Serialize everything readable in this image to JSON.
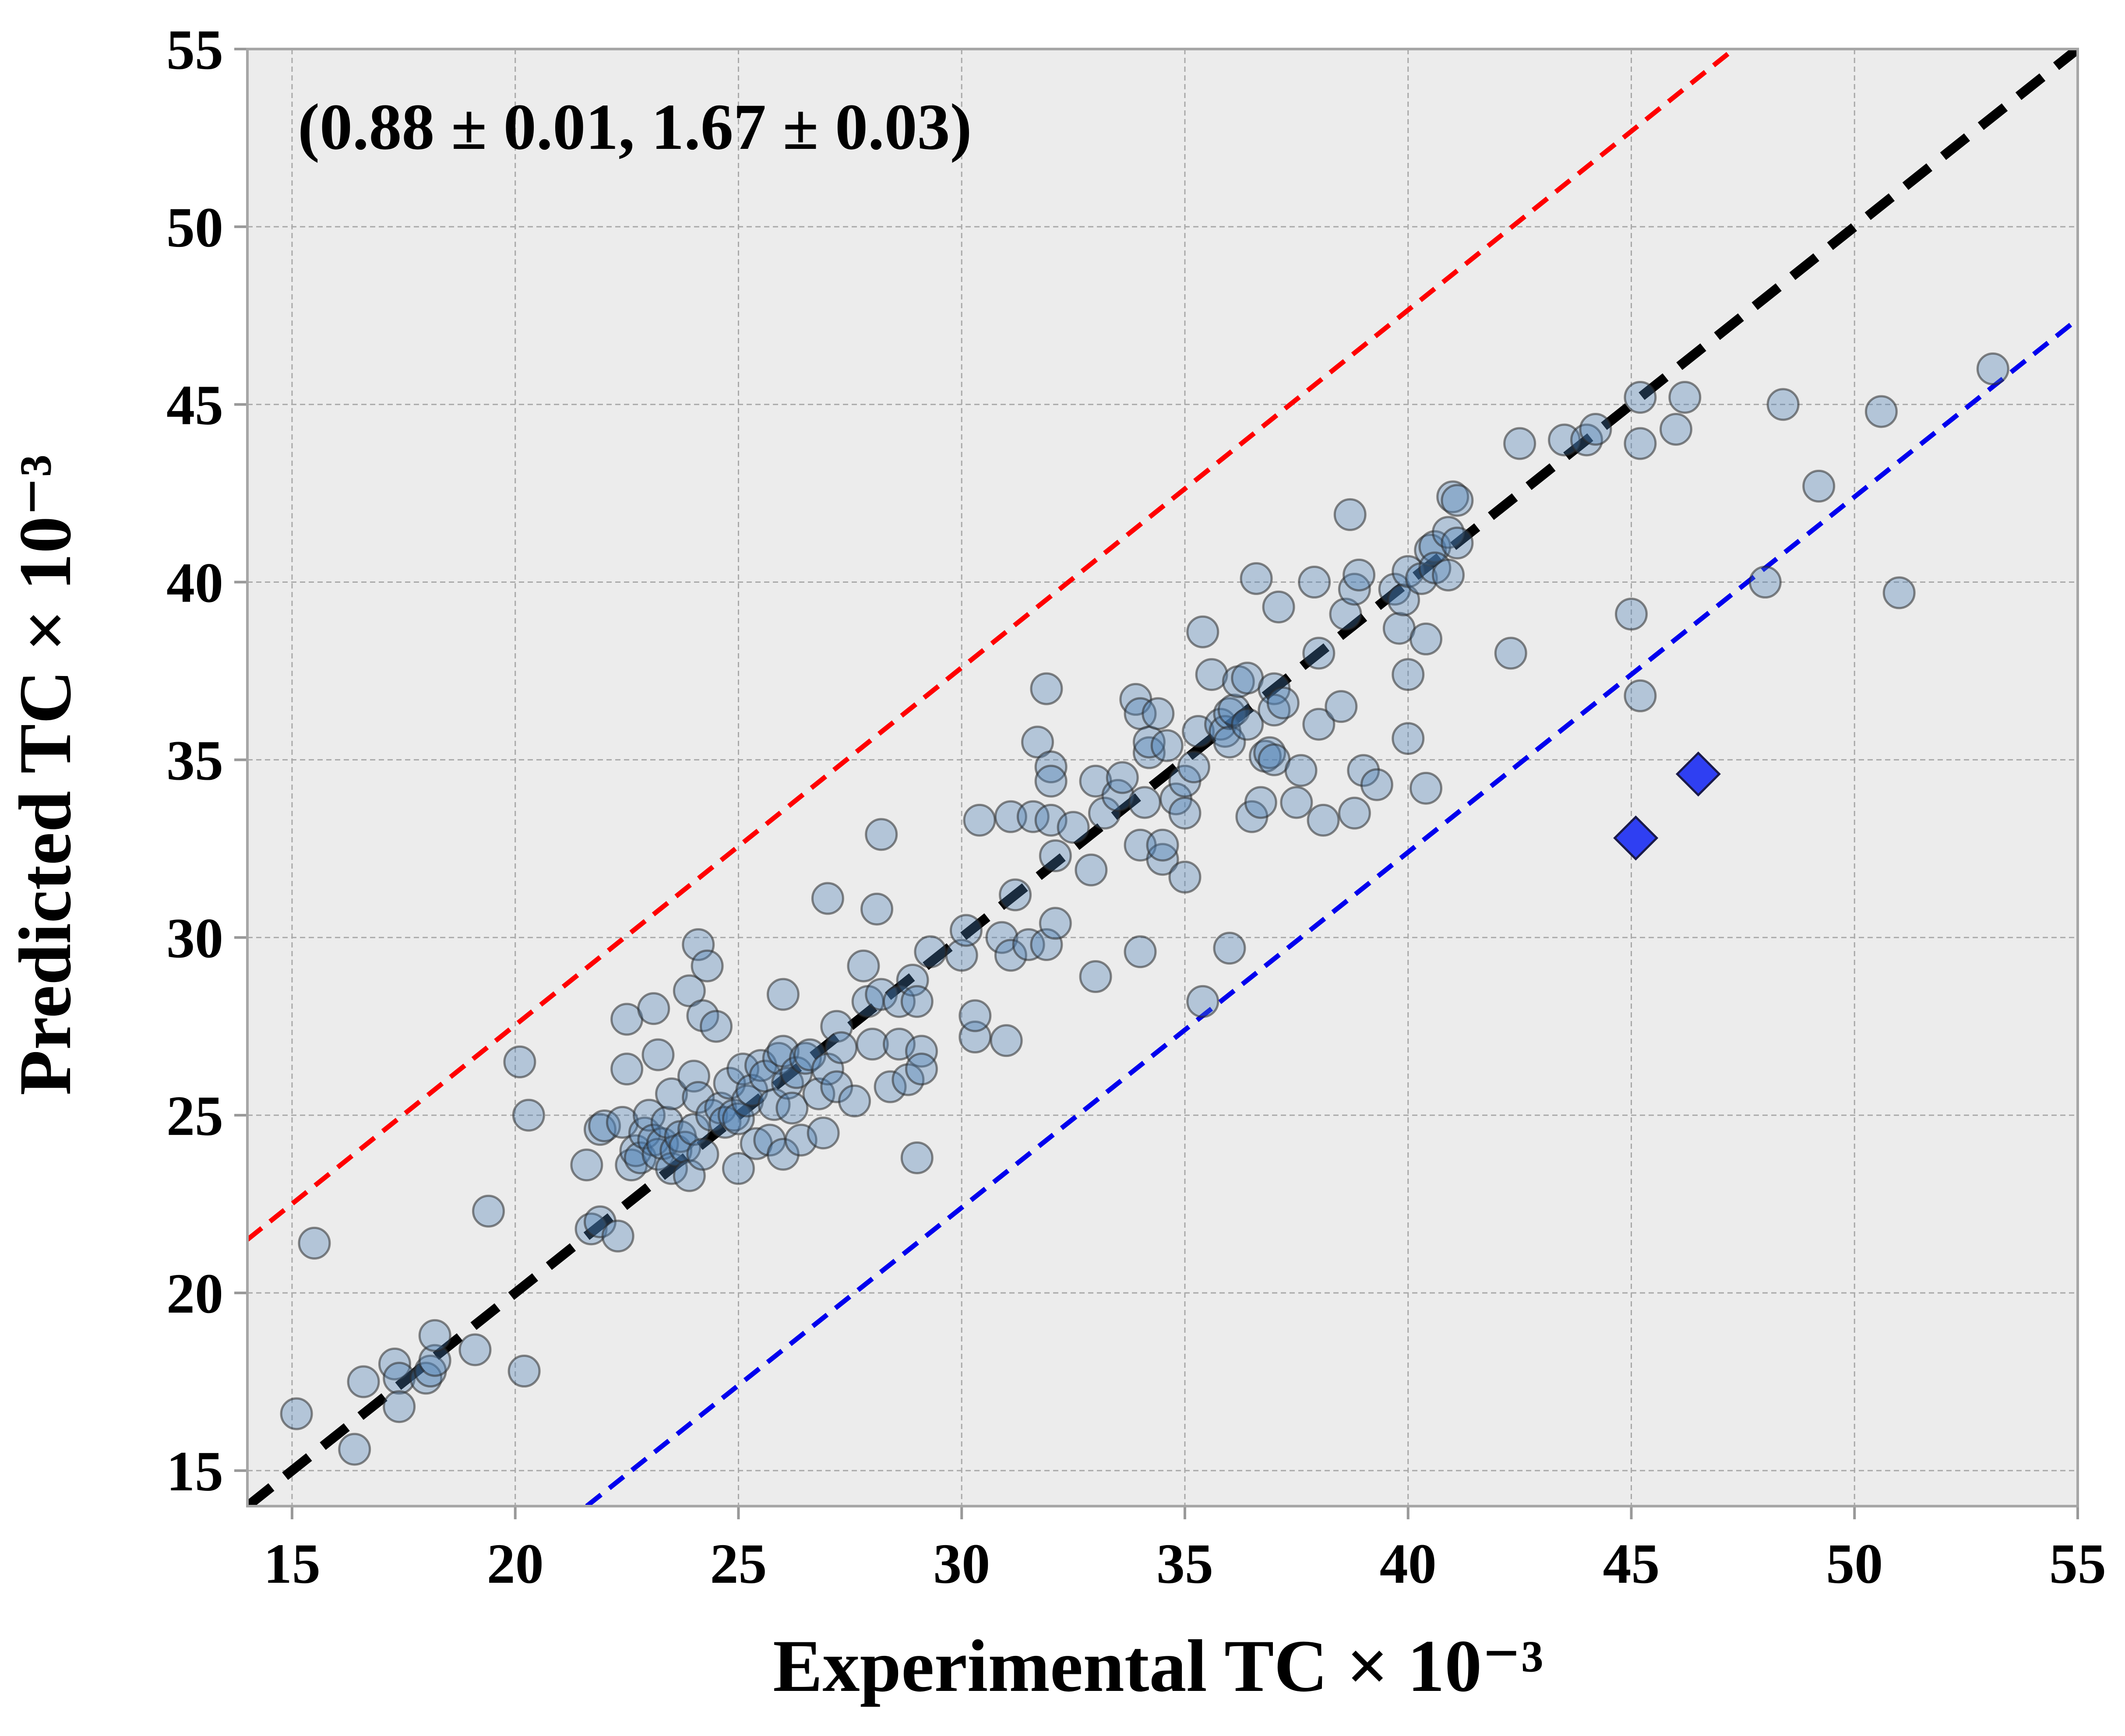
{
  "chart_data": {
    "type": "scatter",
    "title": "",
    "annotation": "(0.88 ± 0.01, 1.67 ± 0.03)",
    "xlabel": "Experimental TC × 10⁻³",
    "ylabel": "Predicted TC × 10⁻³",
    "xlim": [
      14,
      55
    ],
    "ylim": [
      14,
      55
    ],
    "xticks": [
      "15",
      "20",
      "25",
      "30",
      "35",
      "40",
      "45",
      "50",
      "55"
    ],
    "yticks": [
      "15",
      "20",
      "25",
      "30",
      "35",
      "40",
      "45",
      "50",
      "55"
    ],
    "grid": true,
    "background": "#ececec",
    "reference_lines": [
      {
        "style": "dashed",
        "color": "#000000",
        "points": [
          [
            14,
            14
          ],
          [
            55,
            55
          ]
        ]
      },
      {
        "style": "dashed",
        "color": "#ff0000",
        "points": [
          [
            14,
            21.5
          ],
          [
            47.3,
            55
          ]
        ]
      },
      {
        "style": "dashed",
        "color": "#0000ee",
        "points": [
          [
            21.6,
            14
          ],
          [
            55,
            47.4
          ]
        ]
      }
    ],
    "series": [
      {
        "marker": "circle",
        "color": "#4a7db5",
        "points": [
          [
            15.1,
            16.6
          ],
          [
            15.5,
            21.4
          ],
          [
            16.4,
            15.6
          ],
          [
            16.6,
            17.5
          ],
          [
            17.3,
            18.0
          ],
          [
            17.4,
            17.6
          ],
          [
            17.4,
            16.8
          ],
          [
            18.0,
            17.6
          ],
          [
            18.1,
            17.8
          ],
          [
            18.2,
            18.1
          ],
          [
            18.2,
            18.8
          ],
          [
            19.1,
            18.4
          ],
          [
            19.4,
            22.3
          ],
          [
            20.1,
            26.5
          ],
          [
            20.2,
            17.8
          ],
          [
            20.3,
            25.0
          ],
          [
            21.6,
            23.6
          ],
          [
            21.7,
            21.8
          ],
          [
            21.9,
            22.0
          ],
          [
            21.9,
            24.6
          ],
          [
            22.0,
            24.7
          ],
          [
            22.3,
            21.6
          ],
          [
            22.4,
            24.8
          ],
          [
            22.5,
            27.7
          ],
          [
            22.5,
            26.3
          ],
          [
            22.6,
            23.6
          ],
          [
            22.7,
            24.0
          ],
          [
            22.8,
            23.8
          ],
          [
            22.9,
            24.5
          ],
          [
            23.0,
            25.0
          ],
          [
            23.1,
            24.3
          ],
          [
            23.1,
            28.0
          ],
          [
            23.2,
            23.9
          ],
          [
            23.2,
            26.7
          ],
          [
            23.3,
            24.2
          ],
          [
            23.4,
            24.8
          ],
          [
            23.5,
            25.6
          ],
          [
            23.5,
            23.5
          ],
          [
            23.6,
            24.0
          ],
          [
            23.7,
            24.4
          ],
          [
            23.8,
            24.1
          ],
          [
            23.9,
            28.5
          ],
          [
            23.9,
            23.3
          ],
          [
            24.0,
            26.1
          ],
          [
            24.0,
            24.6
          ],
          [
            24.1,
            29.8
          ],
          [
            24.1,
            25.5
          ],
          [
            24.2,
            27.8
          ],
          [
            24.2,
            23.9
          ],
          [
            24.3,
            29.2
          ],
          [
            24.4,
            25.0
          ],
          [
            24.5,
            27.5
          ],
          [
            24.6,
            25.2
          ],
          [
            24.7,
            24.8
          ],
          [
            24.8,
            25.9
          ],
          [
            24.9,
            25.0
          ],
          [
            25.0,
            23.5
          ],
          [
            25.0,
            24.9
          ],
          [
            25.1,
            26.3
          ],
          [
            25.2,
            25.4
          ],
          [
            25.3,
            25.7
          ],
          [
            25.4,
            24.2
          ],
          [
            25.5,
            26.4
          ],
          [
            25.6,
            26.1
          ],
          [
            25.7,
            24.3
          ],
          [
            25.8,
            25.3
          ],
          [
            25.9,
            26.6
          ],
          [
            26.0,
            28.4
          ],
          [
            26.0,
            26.8
          ],
          [
            26.0,
            23.9
          ],
          [
            26.1,
            25.9
          ],
          [
            26.2,
            25.2
          ],
          [
            26.3,
            26.2
          ],
          [
            26.4,
            24.3
          ],
          [
            26.5,
            26.6
          ],
          [
            26.6,
            26.7
          ],
          [
            26.8,
            25.6
          ],
          [
            26.9,
            24.5
          ],
          [
            27.0,
            31.1
          ],
          [
            27.0,
            26.3
          ],
          [
            27.2,
            27.5
          ],
          [
            27.2,
            25.8
          ],
          [
            27.3,
            26.9
          ],
          [
            27.6,
            25.4
          ],
          [
            27.8,
            29.2
          ],
          [
            27.9,
            28.2
          ],
          [
            28.0,
            27.0
          ],
          [
            28.1,
            30.8
          ],
          [
            28.2,
            32.9
          ],
          [
            28.2,
            28.4
          ],
          [
            28.4,
            25.8
          ],
          [
            28.6,
            28.2
          ],
          [
            28.6,
            27.0
          ],
          [
            28.8,
            26.0
          ],
          [
            28.9,
            28.8
          ],
          [
            29.0,
            28.2
          ],
          [
            29.0,
            23.8
          ],
          [
            29.1,
            26.8
          ],
          [
            29.1,
            26.3
          ],
          [
            29.3,
            29.6
          ],
          [
            30.0,
            29.5
          ],
          [
            30.1,
            30.2
          ],
          [
            30.3,
            27.2
          ],
          [
            30.3,
            27.8
          ],
          [
            30.4,
            33.3
          ],
          [
            30.9,
            30.0
          ],
          [
            31.0,
            27.1
          ],
          [
            31.1,
            29.5
          ],
          [
            31.1,
            33.4
          ],
          [
            31.2,
            31.2
          ],
          [
            31.5,
            29.8
          ],
          [
            31.6,
            33.4
          ],
          [
            31.7,
            35.5
          ],
          [
            31.9,
            37.0
          ],
          [
            31.9,
            29.8
          ],
          [
            32.0,
            34.8
          ],
          [
            32.0,
            34.4
          ],
          [
            32.0,
            33.3
          ],
          [
            32.1,
            32.3
          ],
          [
            32.1,
            30.4
          ],
          [
            32.5,
            33.1
          ],
          [
            32.9,
            31.9
          ],
          [
            33.0,
            34.4
          ],
          [
            33.0,
            28.9
          ],
          [
            33.2,
            33.5
          ],
          [
            33.5,
            34.0
          ],
          [
            33.6,
            34.5
          ],
          [
            33.9,
            36.7
          ],
          [
            34.0,
            36.3
          ],
          [
            34.0,
            32.6
          ],
          [
            34.0,
            29.6
          ],
          [
            34.1,
            33.8
          ],
          [
            34.2,
            35.2
          ],
          [
            34.2,
            35.5
          ],
          [
            34.4,
            36.3
          ],
          [
            34.5,
            32.2
          ],
          [
            34.5,
            32.6
          ],
          [
            34.6,
            35.4
          ],
          [
            34.8,
            33.9
          ],
          [
            35.0,
            31.7
          ],
          [
            35.0,
            34.4
          ],
          [
            35.0,
            33.5
          ],
          [
            35.2,
            34.8
          ],
          [
            35.3,
            35.8
          ],
          [
            35.4,
            38.6
          ],
          [
            35.4,
            28.2
          ],
          [
            35.6,
            37.4
          ],
          [
            35.8,
            36.0
          ],
          [
            35.9,
            35.8
          ],
          [
            36.0,
            36.3
          ],
          [
            36.0,
            35.5
          ],
          [
            36.0,
            29.7
          ],
          [
            36.1,
            36.4
          ],
          [
            36.2,
            37.2
          ],
          [
            36.4,
            37.3
          ],
          [
            36.4,
            36.0
          ],
          [
            36.5,
            33.4
          ],
          [
            36.6,
            40.1
          ],
          [
            36.7,
            33.8
          ],
          [
            36.8,
            35.1
          ],
          [
            36.9,
            35.2
          ],
          [
            37.0,
            37.0
          ],
          [
            37.0,
            36.4
          ],
          [
            37.0,
            35.0
          ],
          [
            37.1,
            39.3
          ],
          [
            37.2,
            36.6
          ],
          [
            37.5,
            33.8
          ],
          [
            37.6,
            34.7
          ],
          [
            37.9,
            40.0
          ],
          [
            38.0,
            38.0
          ],
          [
            38.0,
            36.0
          ],
          [
            38.1,
            33.3
          ],
          [
            38.5,
            36.5
          ],
          [
            38.6,
            39.1
          ],
          [
            38.7,
            41.9
          ],
          [
            38.8,
            39.8
          ],
          [
            38.8,
            33.5
          ],
          [
            38.9,
            40.2
          ],
          [
            39.0,
            34.7
          ],
          [
            39.3,
            34.3
          ],
          [
            39.7,
            39.8
          ],
          [
            39.8,
            38.7
          ],
          [
            39.9,
            39.5
          ],
          [
            40.0,
            40.3
          ],
          [
            40.0,
            37.4
          ],
          [
            40.0,
            35.6
          ],
          [
            40.3,
            40.1
          ],
          [
            40.4,
            34.2
          ],
          [
            40.4,
            38.4
          ],
          [
            40.5,
            40.9
          ],
          [
            40.6,
            41.0
          ],
          [
            40.6,
            40.4
          ],
          [
            40.9,
            40.2
          ],
          [
            40.9,
            41.4
          ],
          [
            41.0,
            42.4
          ],
          [
            41.1,
            42.3
          ],
          [
            41.1,
            41.1
          ],
          [
            42.3,
            38.0
          ],
          [
            42.5,
            43.9
          ],
          [
            43.5,
            44.0
          ],
          [
            44.0,
            44.0
          ],
          [
            44.2,
            44.3
          ],
          [
            45.0,
            39.1
          ],
          [
            45.2,
            45.2
          ],
          [
            45.2,
            43.9
          ],
          [
            45.2,
            36.8
          ],
          [
            46.0,
            44.3
          ],
          [
            46.2,
            45.2
          ],
          [
            48.0,
            40.0
          ],
          [
            48.4,
            45.0
          ],
          [
            49.2,
            42.7
          ],
          [
            50.6,
            44.8
          ],
          [
            51.0,
            39.7
          ],
          [
            53.1,
            46.0
          ]
        ]
      },
      {
        "marker": "diamond",
        "color": "#2f3ff2",
        "points": [
          [
            45.1,
            32.8
          ],
          [
            46.5,
            34.6
          ]
        ]
      }
    ]
  }
}
